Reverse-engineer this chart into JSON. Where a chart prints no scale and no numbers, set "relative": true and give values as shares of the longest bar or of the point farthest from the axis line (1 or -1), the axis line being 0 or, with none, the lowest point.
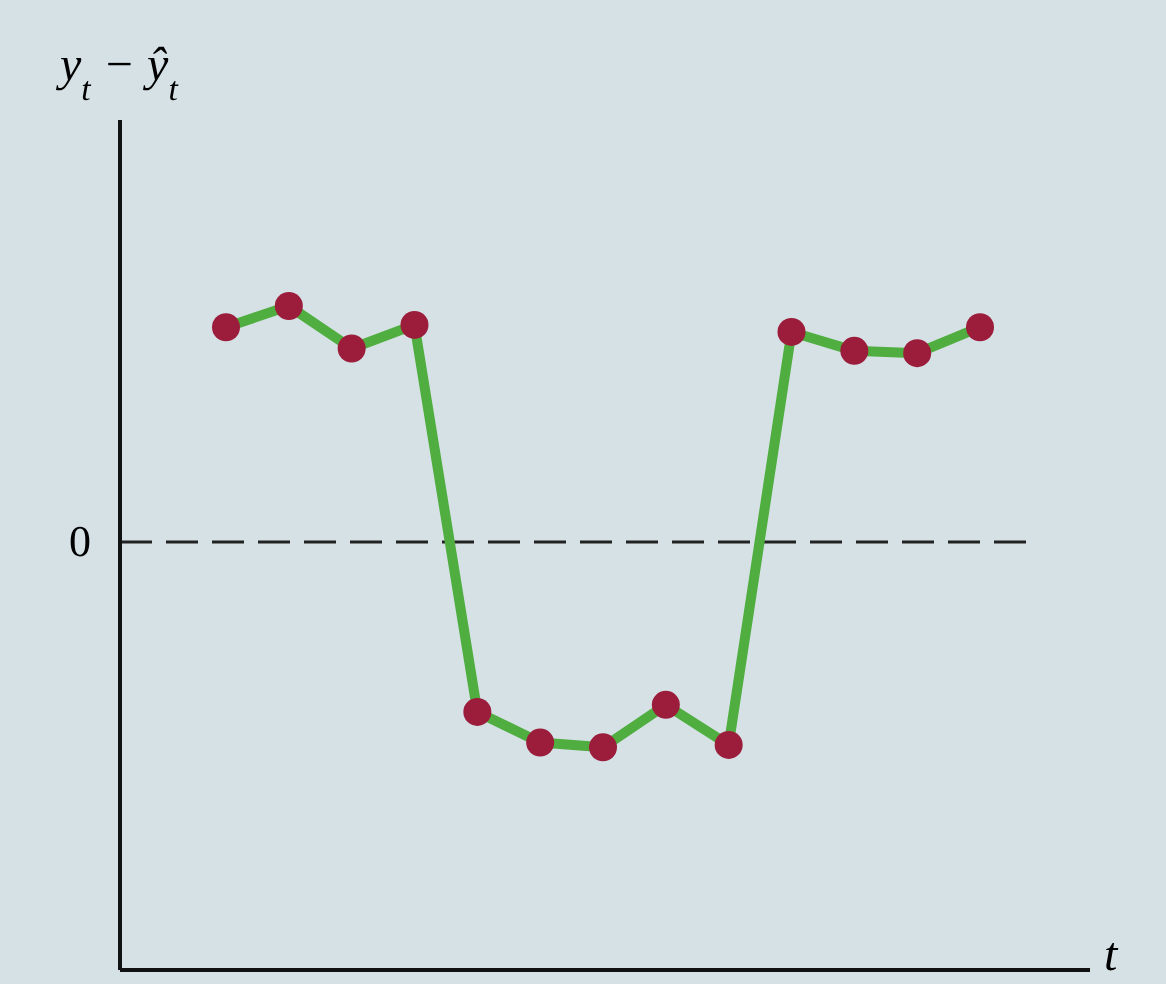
{
  "chart_data": {
    "type": "line",
    "relative": true,
    "xlabel": "t",
    "ylabel": "y$_{t}$ − ŷ$_{t}$",
    "categories": [
      null,
      null,
      null,
      null,
      null,
      null,
      null,
      null,
      null,
      null,
      null,
      null,
      null
    ],
    "series": [
      {
        "color": "#4fae3f",
        "values": [
          0.91,
          1,
          0.82,
          0.92,
          -0.72,
          -0.85,
          -0.87,
          -0.69,
          -0.86,
          0.89,
          0.81,
          0.8,
          0.91
        ]
      }
    ],
    "marker": "circle",
    "line_style": "solid",
    "ref_lines": [
      {
        "axis": "y",
        "value": 0,
        "label": "0",
        "color": "#222222",
        "line_style": "dashed"
      }
    ]
  }
}
